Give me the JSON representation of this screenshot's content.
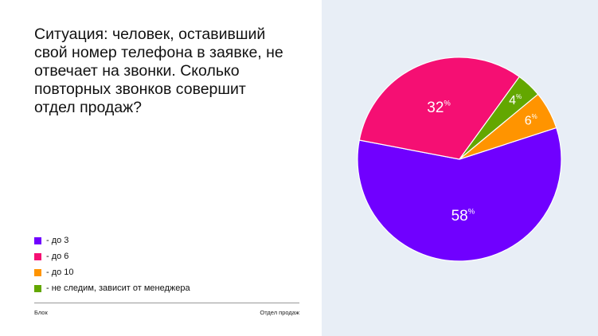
{
  "title": "Ситуация: человек, оставивший свой номер телефона в заявке, не отвечает на звонки. Сколько повторных звонков совершит отдел продаж?",
  "footer": {
    "left": "Блок",
    "right": "Отдел продаж"
  },
  "chart_data": {
    "type": "pie",
    "unit": "%",
    "categories": [
      "- до 3",
      "- до 6",
      "- до 10",
      "- не следим, зависит от менеджера"
    ],
    "values": [
      58,
      32,
      6,
      4
    ],
    "colors": [
      "#7000ff",
      "#f50f73",
      "#ff9400",
      "#63a700"
    ],
    "labels": [
      "58",
      "32",
      "6",
      "4"
    ],
    "legend": "bottom-left"
  }
}
